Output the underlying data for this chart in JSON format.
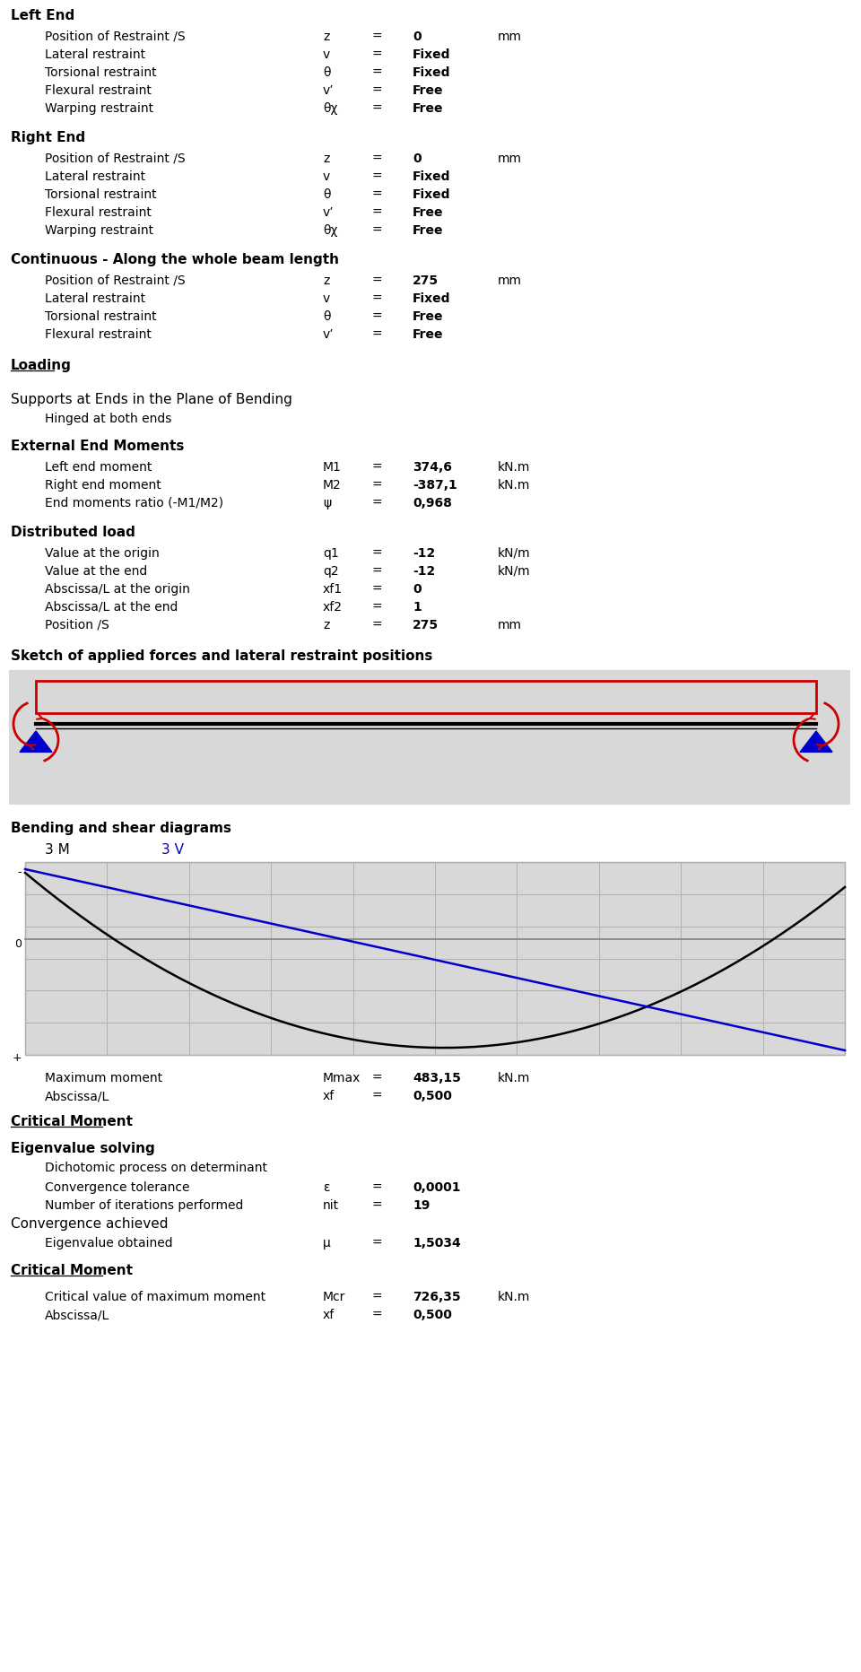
{
  "title_bg": "#ffffff",
  "text_color": "#000000",
  "sections": {
    "left_end": {
      "header": "Left End",
      "rows": [
        {
          "label": "Position of Restraint /S",
          "sym": "z",
          "eq": "=",
          "val": "0",
          "unit": "mm"
        },
        {
          "label": "Lateral restraint",
          "sym": "v",
          "eq": "=",
          "val": "Fixed",
          "unit": ""
        },
        {
          "label": "Torsional restraint",
          "sym": "θ",
          "eq": "=",
          "val": "Fixed",
          "unit": ""
        },
        {
          "label": "Flexural restraint",
          "sym": "v’",
          "eq": "=",
          "val": "Free",
          "unit": ""
        },
        {
          "label": "Warping restraint",
          "sym": "θχ",
          "eq": "=",
          "val": "Free",
          "unit": ""
        }
      ]
    },
    "right_end": {
      "header": "Right End",
      "rows": [
        {
          "label": "Position of Restraint /S",
          "sym": "z",
          "eq": "=",
          "val": "0",
          "unit": "mm"
        },
        {
          "label": "Lateral restraint",
          "sym": "v",
          "eq": "=",
          "val": "Fixed",
          "unit": ""
        },
        {
          "label": "Torsional restraint",
          "sym": "θ",
          "eq": "=",
          "val": "Fixed",
          "unit": ""
        },
        {
          "label": "Flexural restraint",
          "sym": "v’",
          "eq": "=",
          "val": "Free",
          "unit": ""
        },
        {
          "label": "Warping restraint",
          "sym": "θχ",
          "eq": "=",
          "val": "Free",
          "unit": ""
        }
      ]
    },
    "continuous": {
      "header": "Continuous - Along the whole beam length",
      "rows": [
        {
          "label": "Position of Restraint /S",
          "sym": "z",
          "eq": "=",
          "val": "275",
          "unit": "mm"
        },
        {
          "label": "Lateral restraint",
          "sym": "v",
          "eq": "=",
          "val": "Fixed",
          "unit": ""
        },
        {
          "label": "Torsional restraint",
          "sym": "θ",
          "eq": "=",
          "val": "Free",
          "unit": ""
        },
        {
          "label": "Flexural restraint",
          "sym": "v’",
          "eq": "=",
          "val": "Free",
          "unit": ""
        }
      ]
    }
  },
  "loading_header": "Loading",
  "supports": {
    "header": "Supports at Ends in the Plane of Bending",
    "sub": "Hinged at both ends"
  },
  "external_moments": {
    "header": "External End Moments",
    "rows": [
      {
        "label": "Left end moment",
        "sym": "M1",
        "eq": "=",
        "val": "374,6",
        "unit": "kN.m"
      },
      {
        "label": "Right end moment",
        "sym": "M2",
        "eq": "=",
        "val": "-387,1",
        "unit": "kN.m"
      },
      {
        "label": "End moments ratio (-M1/M2)",
        "sym": "ψ",
        "eq": "=",
        "val": "0,968",
        "unit": ""
      }
    ]
  },
  "distributed_load": {
    "header": "Distributed load",
    "rows": [
      {
        "label": "Value at the origin",
        "sym": "q1",
        "eq": "=",
        "val": "-12",
        "unit": "kN/m"
      },
      {
        "label": "Value at the end",
        "sym": "q2",
        "eq": "=",
        "val": "-12",
        "unit": "kN/m"
      },
      {
        "label": "Abscissa/L at the origin",
        "sym": "xf1",
        "eq": "=",
        "val": "0",
        "unit": ""
      },
      {
        "label": "Abscissa/L at the end",
        "sym": "xf2",
        "eq": "=",
        "val": "1",
        "unit": ""
      },
      {
        "label": "Position /S",
        "sym": "z",
        "eq": "=",
        "val": "275",
        "unit": "mm"
      }
    ]
  },
  "sketch_header": "Sketch of applied forces and lateral restraint positions",
  "bending_header": "Bending and shear diagrams",
  "results": {
    "max_moment": {
      "label": "Maximum moment",
      "sym": "Mmax",
      "eq": "=",
      "val": "483,15",
      "unit": "kN.m"
    },
    "abscissa": {
      "label": "Abscissa/L",
      "sym": "xf",
      "eq": "=",
      "val": "0,500",
      "unit": ""
    }
  },
  "critical_moment_header": "Critical Moment",
  "eigenvalue": {
    "header": "Eigenvalue solving",
    "sub1": "Dichotomic process on determinant",
    "rows": [
      {
        "label": "Convergence tolerance",
        "sym": "ε",
        "eq": "=",
        "val": "0,0001",
        "unit": ""
      },
      {
        "label": "Number of iterations performed",
        "sym": "nit",
        "eq": "=",
        "val": "19",
        "unit": ""
      }
    ],
    "conv": "Convergence achieved",
    "eig": {
      "label": "Eigenvalue obtained",
      "sym": "μ",
      "eq": "=",
      "val": "1,5034",
      "unit": ""
    }
  },
  "critical_moment2": {
    "header": "Critical Moment",
    "rows": [
      {
        "label": "Critical value of maximum moment",
        "sym": "Mcr",
        "eq": "=",
        "val": "726,35",
        "unit": "kN.m"
      },
      {
        "label": "Abscissa/L",
        "sym": "xf",
        "eq": "=",
        "val": "0,500",
        "unit": ""
      }
    ]
  },
  "sketch_bg": "#d8d8d8",
  "diagram_bg": "#d8d8d8",
  "moment_color": "#000000",
  "shear_color": "#0000cc",
  "beam_color": "#000000",
  "red_color": "#cc0000",
  "triangle_color": "#0000cc",
  "grid_color": "#b0b0b0",
  "zeroline_color": "#888888"
}
